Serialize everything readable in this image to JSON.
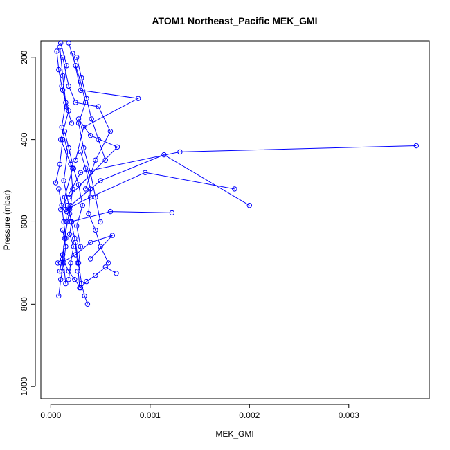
{
  "chart_data": {
    "type": "line",
    "title": "ATOM1 Northeast_Pacific MEK_GMI",
    "xlabel": "MEK_GMI",
    "ylabel": "Pressure (mbar)",
    "xlim": [
      -0.0001,
      0.00381
    ],
    "ylim": [
      1030,
      160
    ],
    "y_reversed": true,
    "x_ticks": [
      0.0,
      0.001,
      0.002,
      0.003
    ],
    "x_tick_labels": [
      "0.000",
      "0.001",
      "0.002",
      "0.003"
    ],
    "y_ticks": [
      200,
      400,
      600,
      800,
      1000
    ],
    "y_tick_labels": [
      "200",
      "400",
      "600",
      "800",
      "1000"
    ],
    "grid": false,
    "marker": "open-circle",
    "series_color": "#0000ff",
    "series": [
      {
        "x": [
          0.0001,
          0.00016,
          0.00012,
          0.00018,
          0.0001,
          0.00022,
          0.00014,
          0.00016,
          0.00012,
          0.00015
        ],
        "y": [
          165,
          220,
          280,
          330,
          400,
          470,
          540,
          600,
          680,
          750
        ]
      },
      {
        "x": [
          9e-05,
          0.00012,
          0.00015,
          0.00011,
          0.00017,
          0.00013,
          0.00019,
          0.00014,
          0.00011
        ],
        "y": [
          175,
          245,
          310,
          370,
          430,
          500,
          570,
          640,
          720
        ]
      },
      {
        "x": [
          0.00018,
          0.00025,
          0.0003,
          0.00035,
          0.00028,
          0.00033,
          0.0004,
          0.00045,
          0.0005
        ],
        "y": [
          165,
          220,
          260,
          310,
          360,
          420,
          480,
          540,
          600
        ]
      },
      {
        "x": [
          0.00022,
          0.0003,
          0.00088,
          0.00033,
          0.00025
        ],
        "y": [
          190,
          280,
          300,
          370,
          450
        ]
      },
      {
        "x": [
          0.00012,
          0.00018,
          0.00025,
          0.00048,
          0.0006,
          0.00045,
          0.00035
        ],
        "y": [
          200,
          270,
          310,
          320,
          380,
          450,
          520
        ]
      },
      {
        "x": [
          0.00028,
          0.0004,
          0.00067,
          0.00018
        ],
        "y": [
          350,
          390,
          418,
          540
        ]
      },
      {
        "x": [
          0.0001,
          0.0003,
          0.0013,
          0.00368
        ],
        "y": [
          570,
          480,
          430,
          415
        ]
      },
      {
        "x": [
          0.00015,
          0.0004,
          0.00095,
          0.00185
        ],
        "y": [
          570,
          540,
          480,
          520
        ]
      },
      {
        "x": [
          0.00016,
          0.0002,
          0.0005,
          0.00114,
          0.002
        ],
        "y": [
          575,
          560,
          500,
          437,
          560
        ]
      },
      {
        "x": [
          0.0002,
          0.0006,
          0.00122
        ],
        "y": [
          600,
          575,
          578
        ]
      },
      {
        "x": [
          0.0001,
          0.00025,
          0.0004,
          0.00062,
          0.0004
        ],
        "y": [
          700,
          680,
          650,
          633,
          690
        ]
      },
      {
        "x": [
          7e-05,
          0.00012,
          0.00018,
          0.00024,
          0.0003,
          0.00036,
          0.00045,
          0.00055,
          0.00066
        ],
        "y": [
          700,
          690,
          720,
          740,
          760,
          745,
          730,
          710,
          725
        ]
      },
      {
        "x": [
          8e-05,
          0.00011,
          0.00013,
          0.00015,
          0.00012,
          9e-05
        ],
        "y": [
          520,
          560,
          600,
          640,
          680,
          720
        ]
      },
      {
        "x": [
          0.00025,
          0.00028,
          0.00031,
          0.00034,
          0.00037
        ],
        "y": [
          650,
          700,
          750,
          780,
          800
        ]
      },
      {
        "x": [
          0.00012,
          0.00015,
          0.00013,
          0.0001,
          8e-05
        ],
        "y": [
          620,
          660,
          700,
          740,
          780
        ]
      },
      {
        "x": [
          0.0002,
          0.00022,
          0.00019,
          0.00024,
          0.00027,
          0.00029
        ],
        "y": [
          460,
          520,
          580,
          640,
          700,
          760
        ]
      },
      {
        "x": [
          0.0003,
          0.00035,
          0.0004,
          0.00038,
          0.00045,
          0.0005,
          0.00058
        ],
        "y": [
          430,
          470,
          520,
          580,
          620,
          660,
          700
        ]
      },
      {
        "x": [
          5e-05,
          9e-05,
          0.00012
        ],
        "y": [
          505,
          460,
          400
        ]
      },
      {
        "x": [
          0.00014,
          0.00018,
          0.00023,
          0.00028,
          0.00032,
          0.00026,
          0.0003,
          0.00027
        ],
        "y": [
          380,
          420,
          470,
          510,
          560,
          610,
          660,
          720
        ]
      },
      {
        "x": [
          6e-05,
          8e-05,
          0.00011,
          0.00016,
          0.00021
        ],
        "y": [
          185,
          230,
          270,
          320,
          360
        ]
      },
      {
        "x": [
          0.00026,
          0.00031,
          0.00036,
          0.00041,
          0.00048,
          0.00055
        ],
        "y": [
          200,
          250,
          300,
          350,
          400,
          450
        ]
      },
      {
        "x": [
          0.00017,
          0.00021,
          0.00019,
          0.00023,
          0.0002,
          0.00018
        ],
        "y": [
          560,
          600,
          630,
          660,
          700,
          740
        ]
      }
    ]
  }
}
